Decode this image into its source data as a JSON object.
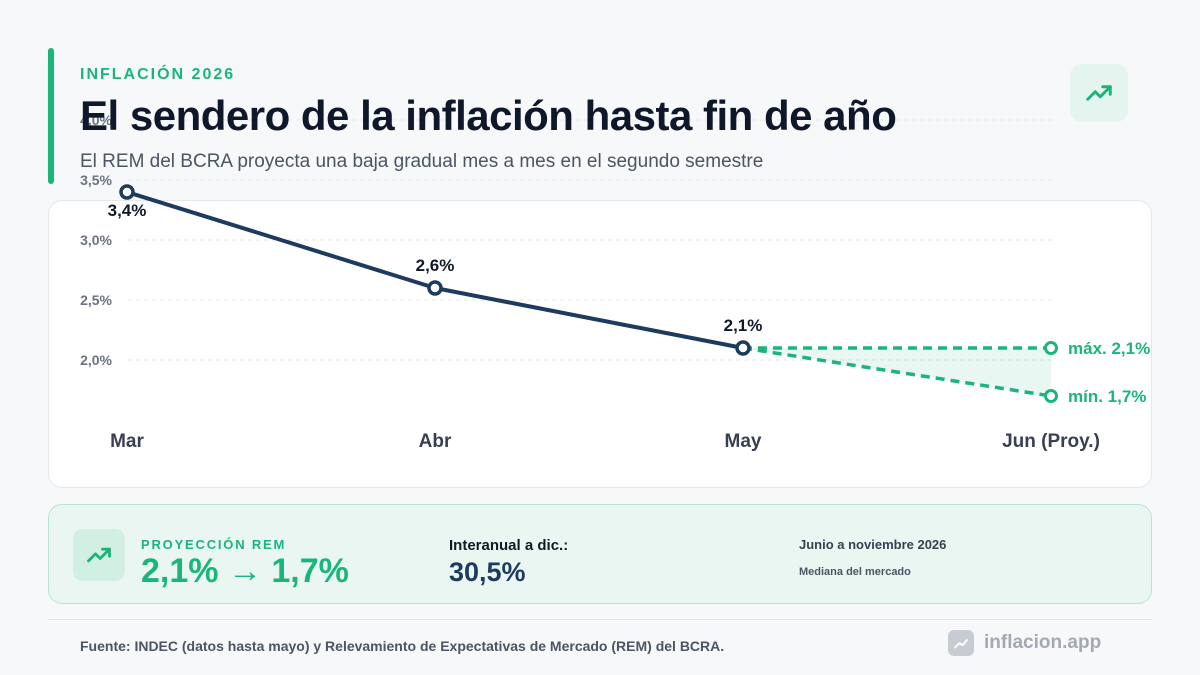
{
  "header": {
    "eyebrow": "INFLACIÓN 2026",
    "title": "El sendero de la inflación hasta fin de año",
    "subtitle": "El REM del BCRA proyecta una baja gradual mes a mes en el segundo semestre"
  },
  "icons": {
    "header_icon": "trending-up-icon",
    "summary_icon": "trending-up-icon",
    "brand_icon": "chart-icon"
  },
  "colors": {
    "accent": "#1bb57a",
    "series_line": "#1e3a5f",
    "projection": "#1bb57a"
  },
  "chart_data": {
    "type": "line",
    "categories": [
      "Mar",
      "Abr",
      "May",
      "Jun (Proy.)"
    ],
    "ylim": [
      1.5,
      4.0
    ],
    "yticks": [
      {
        "value": 4.0,
        "label": "4,0%"
      },
      {
        "value": 3.5,
        "label": "3,5%"
      },
      {
        "value": 3.0,
        "label": "3,0%"
      },
      {
        "value": 2.5,
        "label": "2,5%"
      },
      {
        "value": 2.0,
        "label": "2,0%"
      }
    ],
    "grid": true,
    "series": [
      {
        "values": [
          3.4,
          2.6,
          2.1,
          null
        ],
        "labels": [
          "3,4%",
          "2,6%",
          "2,1%",
          ""
        ]
      }
    ],
    "projection": {
      "from_category": "May",
      "to_category": "Jun (Proy.)",
      "start": 2.1,
      "max": 2.1,
      "min": 1.7,
      "max_label": "máx. 2,1%",
      "min_label": "mín. 1,7%"
    }
  },
  "summary": {
    "label": "PROYECCIÓN REM",
    "value": "2,1% → 1,7%",
    "yoy_label": "Interanual a dic.:",
    "yoy_value": "30,5%",
    "period": "Junio a noviembre 2026",
    "period_sub": "Mediana del mercado"
  },
  "footer": {
    "source": "Fuente: INDEC (datos hasta mayo) y Relevamiento de Expectativas de Mercado (REM) del BCRA.",
    "brand": "inflacion.app"
  }
}
